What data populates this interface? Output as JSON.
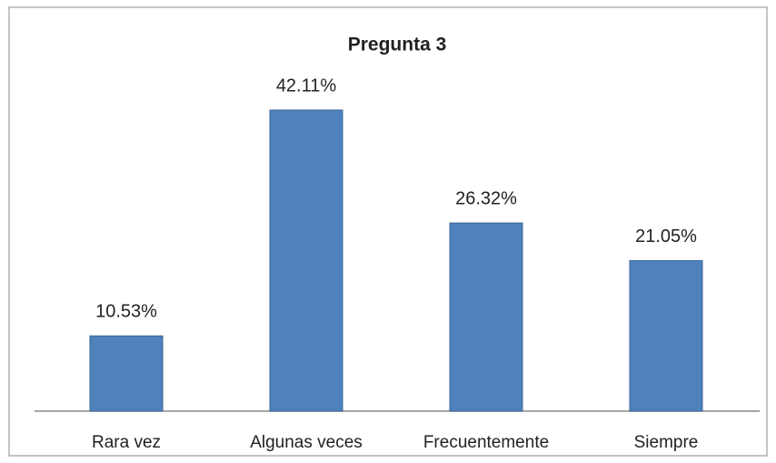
{
  "chart_data": {
    "type": "bar",
    "title": "Pregunta 3",
    "categories": [
      "Rara vez",
      "Algunas veces",
      "Frecuentemente",
      "Siempre"
    ],
    "values": [
      10.53,
      42.11,
      26.32,
      21.05
    ],
    "value_labels": [
      "10.53%",
      "42.11%",
      "26.32%",
      "21.05%"
    ],
    "color": "#4f81bd"
  }
}
